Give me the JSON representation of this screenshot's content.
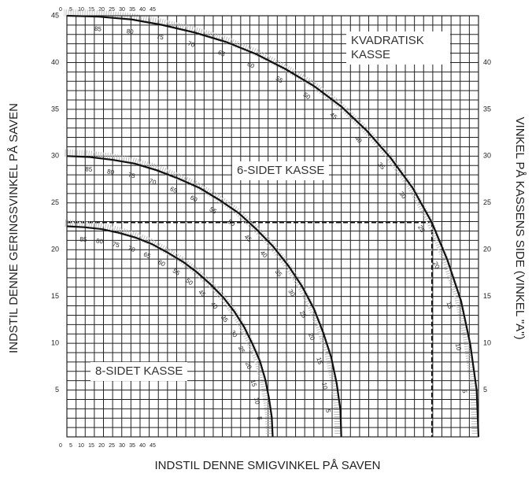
{
  "chart_data": {
    "type": "line",
    "ylabel": "INDSTIL DENNE GERINGSVINKEL PÅ SAVEN",
    "xlabel": "INDSTIL DENNE SMIGVINKEL PÅ SAVEN",
    "y2label": "VINKEL PÅ KASSENS SIDE (VINKEL \"A\")",
    "xlim": [
      0,
      45
    ],
    "ylim": [
      0,
      45
    ],
    "y2lim": [
      0,
      45
    ],
    "yticks": [
      5,
      10,
      15,
      20,
      25,
      30,
      35,
      40,
      45
    ],
    "y2ticks": [
      5,
      10,
      15,
      20,
      25,
      30,
      35,
      40
    ],
    "scale_key": [
      0,
      5,
      10,
      15,
      20,
      25,
      30,
      35,
      40,
      45
    ],
    "grid": [
      0,
      1,
      2,
      3,
      4,
      5,
      6,
      7,
      8,
      9,
      10,
      11,
      12,
      13,
      14,
      15,
      16,
      17,
      18,
      19,
      20,
      21,
      22,
      23,
      24,
      25,
      26,
      27,
      28,
      29,
      30,
      31,
      32,
      33,
      34,
      35,
      36,
      37,
      38,
      39,
      40,
      41,
      42,
      43,
      44,
      45
    ],
    "guide": {
      "x": 39.9,
      "y": 22.9
    },
    "series": [
      {
        "name": "KVADRATISK KASSE",
        "color": "#111111",
        "a": [
          null,
          5,
          10,
          15,
          20,
          25,
          30,
          35,
          40,
          45,
          50,
          55,
          60,
          65,
          70,
          75,
          80,
          85,
          null
        ],
        "x": [
          45,
          44.8,
          44.1,
          43.1,
          41.6,
          39.9,
          37.8,
          35.4,
          32.8,
          30,
          27,
          23.9,
          20.7,
          17.4,
          14,
          10.5,
          7.1,
          3.5,
          0
        ],
        "values": [
          0,
          5,
          9.9,
          14.5,
          18.9,
          22.9,
          26.6,
          29.8,
          32.7,
          35.3,
          37.5,
          39.3,
          40.9,
          42.2,
          43.2,
          44,
          44.6,
          44.9,
          45
        ]
      },
      {
        "name": "6-SIDET KASSE",
        "color": "#111111",
        "a": [
          null,
          5,
          10,
          15,
          20,
          25,
          30,
          35,
          40,
          45,
          50,
          55,
          60,
          65,
          70,
          75,
          80,
          85,
          null
        ],
        "x": [
          30,
          29.9,
          29.5,
          28.9,
          28,
          27,
          25.7,
          24.2,
          22.5,
          20.7,
          18.8,
          16.7,
          14.5,
          12.2,
          9.8,
          7.4,
          5,
          2.5,
          0
        ],
        "values": [
          0,
          2.9,
          5.7,
          8.5,
          11.2,
          13.7,
          16.1,
          18.3,
          20.4,
          22.2,
          23.9,
          25.3,
          26.6,
          27.6,
          28.5,
          29.2,
          29.6,
          29.9,
          30
        ]
      },
      {
        "name": "8-SIDET KASSE",
        "color": "#111111",
        "a": [
          null,
          5,
          10,
          15,
          20,
          25,
          30,
          35,
          40,
          45,
          50,
          55,
          60,
          65,
          70,
          75,
          80,
          85,
          null
        ],
        "x": [
          22.5,
          22.4,
          22.1,
          21.7,
          21.1,
          20.3,
          19.4,
          18.3,
          17.1,
          15.7,
          14.2,
          12.7,
          11,
          9.3,
          7.5,
          5.7,
          3.8,
          1.9,
          0
        ],
        "values": [
          0,
          2.1,
          4.1,
          6.1,
          8.1,
          9.9,
          11.7,
          13.4,
          14.9,
          16.3,
          17.6,
          18.7,
          19.7,
          20.6,
          21.3,
          21.8,
          22.2,
          22.4,
          22.5
        ]
      }
    ]
  }
}
